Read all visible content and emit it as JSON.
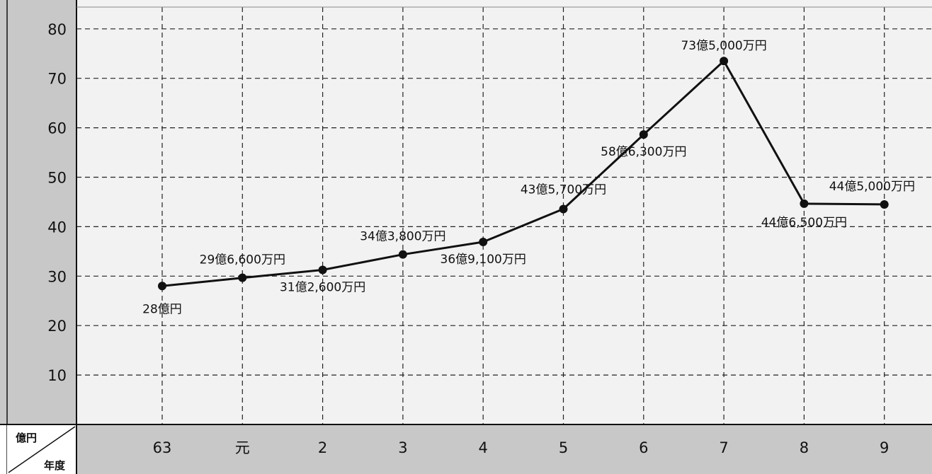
{
  "chart_data": {
    "type": "line",
    "title": "",
    "xlabel": "年度",
    "ylabel": "億円",
    "categories": [
      "63",
      "元",
      "2",
      "3",
      "4",
      "5",
      "6",
      "7",
      "8",
      "9"
    ],
    "series": [
      {
        "values": [
          28.0,
          29.66,
          31.26,
          34.38,
          36.91,
          43.57,
          58.63,
          73.5,
          44.65,
          44.5
        ]
      }
    ],
    "data_labels": [
      "28億円",
      "29億6,600万円",
      "31億2,600万円",
      "34億3,800万円",
      "36億9,100万円",
      "43億5,700万円",
      "58億6,300万円",
      "73億5,000万円",
      "44億6,500万円",
      "44億5,000万円"
    ],
    "yticks": [
      10,
      20,
      30,
      40,
      50,
      60,
      70,
      80
    ],
    "ylim": [
      0,
      85
    ],
    "grid": true,
    "colors": {
      "line": "#111111",
      "axis_band": "#c8c8c8",
      "plot_bg": "#f2f2f2",
      "grid": "#222222"
    }
  }
}
